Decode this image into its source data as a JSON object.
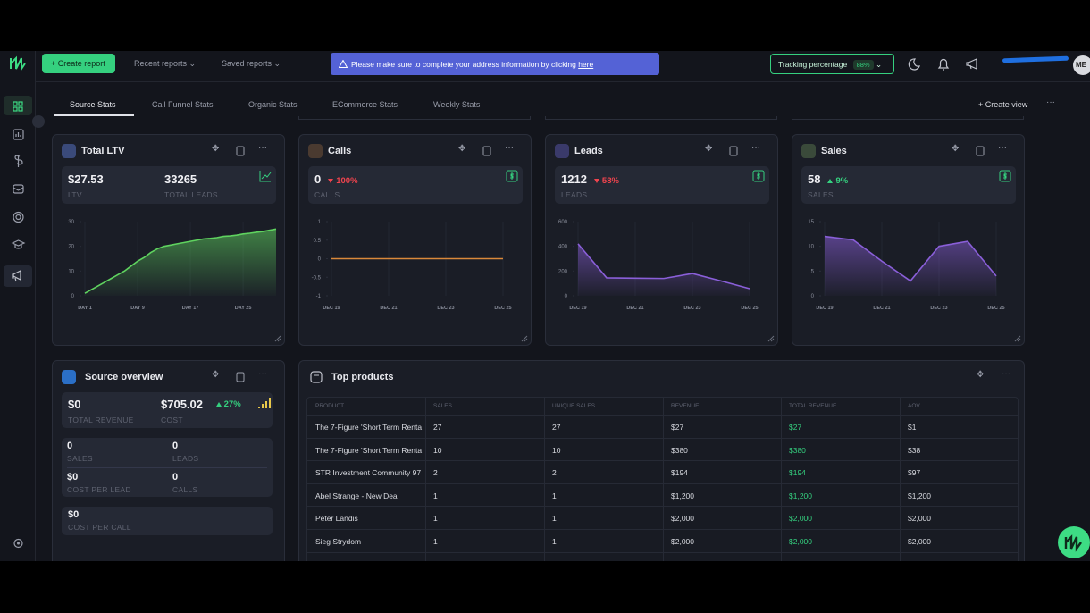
{
  "topbar": {
    "create_report": "Create report",
    "recent_reports": "Recent reports",
    "saved_reports": "Saved reports",
    "banner_text": "Please make sure to complete your address information by clicking",
    "banner_link": "here",
    "tracking_label": "Tracking percentage",
    "tracking_value": "88%",
    "avatar": "ME"
  },
  "tabs": {
    "items": [
      "Source Stats",
      "Call Funnel Stats",
      "Organic Stats",
      "ECommerce Stats",
      "Weekly Stats"
    ],
    "create_view": "Create view"
  },
  "cards": [
    {
      "title": "Total LTV",
      "icon_color": "#3a4a7a",
      "stats": [
        {
          "value": "$27.53",
          "label": "LTV"
        },
        {
          "value": "33265",
          "label": "TOTAL LEADS"
        }
      ],
      "chart": {
        "type": "area",
        "color": "#5fd35f",
        "ylim": [
          0,
          30
        ],
        "yticks": [
          0,
          10,
          20,
          30
        ],
        "xlim": [
          1,
          30
        ],
        "xticks": [
          {
            "value": 1,
            "label": "DAY 1"
          },
          {
            "value": 9,
            "label": "DAY 9"
          },
          {
            "value": 17,
            "label": "DAY 17"
          },
          {
            "value": 25,
            "label": "DAY 25"
          }
        ],
        "x": [
          1,
          2,
          3,
          4,
          5,
          6,
          7,
          8,
          9,
          10,
          11,
          12,
          13,
          14,
          15,
          16,
          17,
          18,
          19,
          20,
          21,
          22,
          23,
          24,
          25,
          26,
          27,
          28,
          29,
          30
        ],
        "values": [
          1,
          2.5,
          4,
          5.5,
          7,
          8.5,
          10,
          12,
          14,
          15.5,
          17.5,
          19,
          20,
          20.5,
          21,
          21.5,
          22,
          22.5,
          23,
          23.2,
          23.5,
          24,
          24.2,
          24.5,
          25,
          25.3,
          25.7,
          26,
          26.5,
          27
        ]
      }
    },
    {
      "title": "Calls",
      "icon_color": "#4a3a30",
      "stats": [
        {
          "value": "0",
          "change": "100%",
          "trend": "down",
          "label": "CALLS"
        }
      ],
      "chart": {
        "type": "line",
        "color": "#d9883a",
        "ylim": [
          -1,
          1
        ],
        "yticks": [
          -1,
          -0.5,
          0,
          0.5,
          1
        ],
        "categories": [
          "DEC 19",
          null,
          "DEC 21",
          null,
          "DEC 23",
          null,
          "DEC 25"
        ],
        "values": [
          0,
          0,
          0,
          0,
          0,
          0,
          0
        ]
      }
    },
    {
      "title": "Leads",
      "icon_color": "#3a3a6a",
      "stats": [
        {
          "value": "1212",
          "change": "58%",
          "trend": "down",
          "label": "LEADS"
        }
      ],
      "chart": {
        "type": "area",
        "color": "#8a5fd9",
        "ylim": [
          0,
          600
        ],
        "yticks": [
          0,
          200,
          400,
          600
        ],
        "categories": [
          "DEC 19",
          null,
          "DEC 21",
          null,
          "DEC 23",
          null,
          "DEC 25"
        ],
        "values": [
          420,
          145,
          142,
          140,
          180,
          120,
          58
        ]
      }
    },
    {
      "title": "Sales",
      "icon_color": "#3a4a3a",
      "stats": [
        {
          "value": "58",
          "change": "9%",
          "trend": "up",
          "label": "SALES"
        }
      ],
      "chart": {
        "type": "area",
        "color": "#8a5fd9",
        "ylim": [
          0,
          15
        ],
        "yticks": [
          0,
          5,
          10,
          15
        ],
        "categories": [
          "DEC 19",
          null,
          "DEC 21",
          null,
          "DEC 23",
          null,
          "DEC 25"
        ],
        "values": [
          12,
          11.3,
          7,
          3,
          10,
          11,
          4
        ]
      }
    }
  ],
  "source_overview": {
    "title": "Source overview",
    "revenue": {
      "value": "$0",
      "label": "TOTAL REVENUE"
    },
    "cost": {
      "value": "$705.02",
      "label": "COST"
    },
    "change": "27%",
    "grid": [
      {
        "value": "0",
        "label": "SALES"
      },
      {
        "value": "0",
        "label": "LEADS"
      },
      {
        "value": "$0",
        "label": "COST PER LEAD"
      },
      {
        "value": "0",
        "label": "CALLS"
      }
    ],
    "cost_per_call": {
      "value": "$0",
      "label": "COST PER CALL"
    }
  },
  "top_products": {
    "title": "Top products",
    "headers": [
      "PRODUCT",
      "SALES",
      "UNIQUE SALES",
      "REVENUE",
      "TOTAL REVENUE",
      "AOV"
    ],
    "rows": [
      [
        "The 7-Figure 'Short Term Renta",
        "27",
        "27",
        "$27",
        "$27",
        "$1"
      ],
      [
        "The 7-Figure 'Short Term Renta",
        "10",
        "10",
        "$380",
        "$380",
        "$38"
      ],
      [
        "STR Investment Community 97",
        "2",
        "2",
        "$194",
        "$194",
        "$97"
      ],
      [
        "Abel Strange - New Deal",
        "1",
        "1",
        "$1,200",
        "$1,200",
        "$1,200"
      ],
      [
        "Peter Landis",
        "1",
        "1",
        "$2,000",
        "$2,000",
        "$2,000"
      ],
      [
        "Sieg Strydom",
        "1",
        "1",
        "$2,000",
        "$2,000",
        "$2,000"
      ]
    ]
  }
}
